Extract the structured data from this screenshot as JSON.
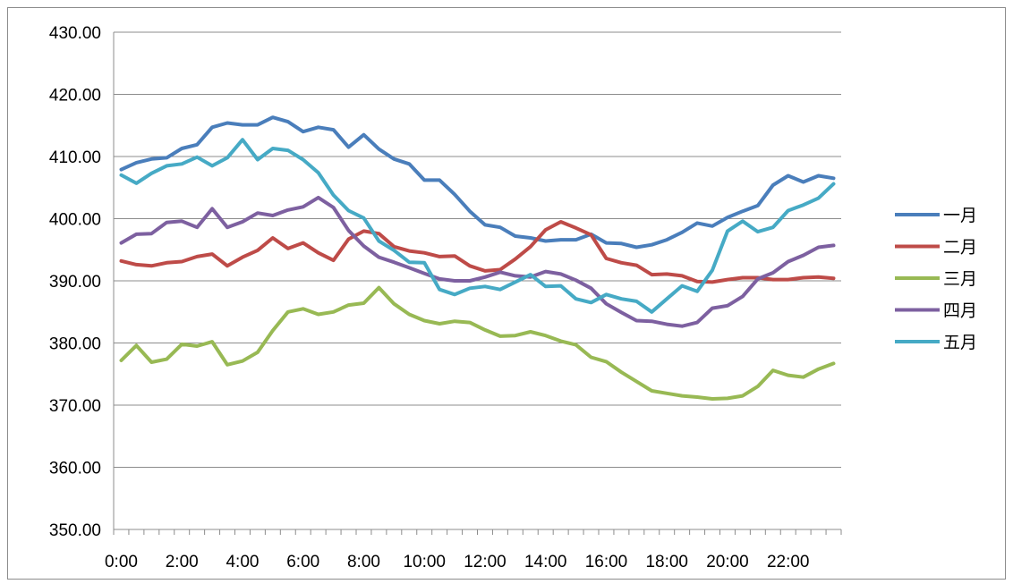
{
  "chart_data": {
    "type": "line",
    "title": "",
    "xlabel": "",
    "ylabel": "",
    "ylim": [
      350,
      430
    ],
    "y_ticks": [
      "350.00",
      "360.00",
      "370.00",
      "380.00",
      "390.00",
      "400.00",
      "410.00",
      "420.00",
      "430.00"
    ],
    "x_tick_labels": [
      "0:00",
      "2:00",
      "4:00",
      "6:00",
      "8:00",
      "10:00",
      "12:00",
      "14:00",
      "16:00",
      "18:00",
      "20:00",
      "22:00"
    ],
    "x_label_every": 4,
    "grid": "horizontal",
    "legend_position": "right",
    "x": [
      "0:00",
      "0:30",
      "1:00",
      "1:30",
      "2:00",
      "2:30",
      "3:00",
      "3:30",
      "4:00",
      "4:30",
      "5:00",
      "5:30",
      "6:00",
      "6:30",
      "7:00",
      "7:30",
      "8:00",
      "8:30",
      "9:00",
      "9:30",
      "10:00",
      "10:30",
      "11:00",
      "11:30",
      "12:00",
      "12:30",
      "13:00",
      "13:30",
      "14:00",
      "14:30",
      "15:00",
      "15:30",
      "16:00",
      "16:30",
      "17:00",
      "17:30",
      "18:00",
      "18:30",
      "19:00",
      "19:30",
      "20:00",
      "20:30",
      "21:00",
      "21:30",
      "22:00",
      "22:30",
      "23:00",
      "23:30"
    ],
    "series": [
      {
        "name": "一月",
        "color": "#4a7ebb",
        "values": [
          407.9,
          409.0,
          409.6,
          409.8,
          411.3,
          411.9,
          414.7,
          415.4,
          415.1,
          415.1,
          416.3,
          415.6,
          414.0,
          414.7,
          414.3,
          411.5,
          413.5,
          411.2,
          409.6,
          408.8,
          406.2,
          406.2,
          403.9,
          401.2,
          399.0,
          398.6,
          397.2,
          396.9,
          396.4,
          396.6,
          396.6,
          397.5,
          396.1,
          396.0,
          395.4,
          395.8,
          396.6,
          397.8,
          399.3,
          398.8,
          400.2,
          401.2,
          402.1,
          405.4,
          406.9,
          405.9,
          406.9,
          406.5
        ]
      },
      {
        "name": "二月",
        "color": "#be4b48",
        "values": [
          393.2,
          392.6,
          392.4,
          392.9,
          393.1,
          393.9,
          394.3,
          392.4,
          393.8,
          394.9,
          396.9,
          395.2,
          396.1,
          394.5,
          393.3,
          396.7,
          398.0,
          397.6,
          395.5,
          394.8,
          394.5,
          393.9,
          394.0,
          392.4,
          391.6,
          391.8,
          393.5,
          395.5,
          398.2,
          399.5,
          398.5,
          397.4,
          393.6,
          392.9,
          392.5,
          391.0,
          391.1,
          390.8,
          389.9,
          389.8,
          390.2,
          390.5,
          390.5,
          390.2,
          390.2,
          390.5,
          390.6,
          390.4
        ]
      },
      {
        "name": "三月",
        "color": "#98b954",
        "values": [
          377.2,
          379.6,
          376.9,
          377.4,
          379.8,
          379.5,
          380.2,
          376.5,
          377.1,
          378.5,
          382.0,
          385.0,
          385.5,
          384.6,
          385.0,
          386.1,
          386.4,
          388.9,
          386.3,
          384.6,
          383.6,
          383.1,
          383.5,
          383.3,
          382.1,
          381.1,
          381.2,
          381.8,
          381.2,
          380.3,
          379.7,
          377.7,
          377.0,
          375.3,
          373.8,
          372.3,
          371.9,
          371.5,
          371.3,
          371.0,
          371.1,
          371.5,
          373.0,
          375.6,
          374.8,
          374.5,
          375.8,
          376.7
        ]
      },
      {
        "name": "四月",
        "color": "#7d60a0",
        "values": [
          396.1,
          397.5,
          397.6,
          399.4,
          399.6,
          398.6,
          401.6,
          398.6,
          399.5,
          400.9,
          400.5,
          401.4,
          401.9,
          403.4,
          401.8,
          398.1,
          395.6,
          393.8,
          393.0,
          392.1,
          391.2,
          390.3,
          390.0,
          390.0,
          390.6,
          391.4,
          390.8,
          390.6,
          391.5,
          391.1,
          390.1,
          388.8,
          386.3,
          384.9,
          383.6,
          383.5,
          383.0,
          382.7,
          383.3,
          385.6,
          386.0,
          387.5,
          390.3,
          391.3,
          393.1,
          394.1,
          395.4,
          395.7
        ]
      },
      {
        "name": "五月",
        "color": "#46aac5",
        "values": [
          407.0,
          405.7,
          407.3,
          408.5,
          408.8,
          409.9,
          408.5,
          409.8,
          412.7,
          409.5,
          411.3,
          411.0,
          409.5,
          407.4,
          403.8,
          401.3,
          400.1,
          396.4,
          394.9,
          393.0,
          392.9,
          388.6,
          387.8,
          388.8,
          389.1,
          388.6,
          389.8,
          391.0,
          389.1,
          389.2,
          387.1,
          386.5,
          387.8,
          387.1,
          386.7,
          385.0,
          387.1,
          389.2,
          388.3,
          391.7,
          398.0,
          399.6,
          397.9,
          398.6,
          401.3,
          402.2,
          403.3,
          405.6
        ]
      }
    ]
  }
}
